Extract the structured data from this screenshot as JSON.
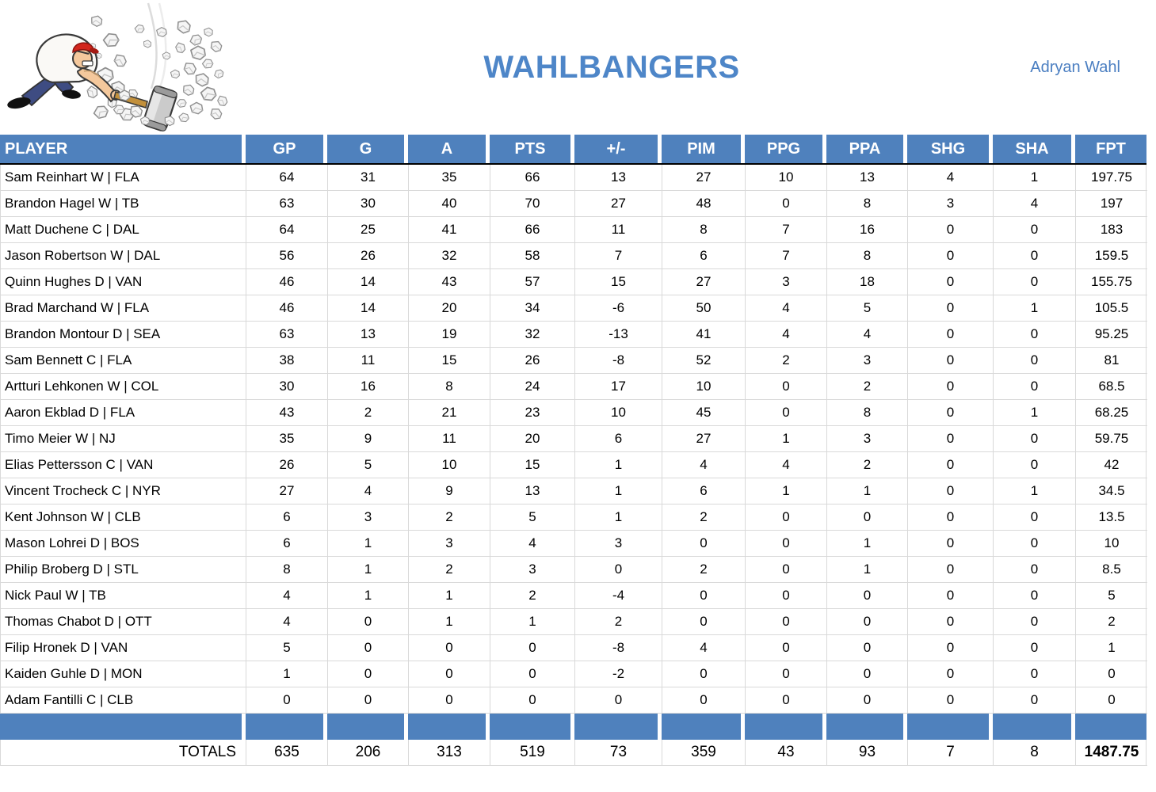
{
  "header": {
    "title": "WAHLBANGERS",
    "owner": "Adryan Wahl",
    "logo_icon": "man-smashing-rocks-with-hammer"
  },
  "colors": {
    "accent": "#4f81bd",
    "title_blue": "#4e86c8",
    "owner_blue": "#4a7ec1",
    "grid_line": "#d9d9d9",
    "text": "#000000",
    "header_text": "#ffffff"
  },
  "table": {
    "columns": [
      "PLAYER",
      "GP",
      "G",
      "A",
      "PTS",
      "+/-",
      "PIM",
      "PPG",
      "PPA",
      "SHG",
      "SHA",
      "FPT"
    ],
    "rows": [
      {
        "player": "Sam Reinhart W | FLA",
        "stats": [
          "64",
          "31",
          "35",
          "66",
          "13",
          "27",
          "10",
          "13",
          "4",
          "1",
          "197.75"
        ]
      },
      {
        "player": "Brandon Hagel W | TB",
        "stats": [
          "63",
          "30",
          "40",
          "70",
          "27",
          "48",
          "0",
          "8",
          "3",
          "4",
          "197"
        ]
      },
      {
        "player": "Matt Duchene C | DAL",
        "stats": [
          "64",
          "25",
          "41",
          "66",
          "11",
          "8",
          "7",
          "16",
          "0",
          "0",
          "183"
        ]
      },
      {
        "player": "Jason Robertson W | DAL",
        "stats": [
          "56",
          "26",
          "32",
          "58",
          "7",
          "6",
          "7",
          "8",
          "0",
          "0",
          "159.5"
        ]
      },
      {
        "player": "Quinn Hughes D | VAN",
        "stats": [
          "46",
          "14",
          "43",
          "57",
          "15",
          "27",
          "3",
          "18",
          "0",
          "0",
          "155.75"
        ]
      },
      {
        "player": "Brad Marchand W | FLA",
        "stats": [
          "46",
          "14",
          "20",
          "34",
          "-6",
          "50",
          "4",
          "5",
          "0",
          "1",
          "105.5"
        ]
      },
      {
        "player": "Brandon Montour D | SEA",
        "stats": [
          "63",
          "13",
          "19",
          "32",
          "-13",
          "41",
          "4",
          "4",
          "0",
          "0",
          "95.25"
        ]
      },
      {
        "player": "Sam Bennett C | FLA",
        "stats": [
          "38",
          "11",
          "15",
          "26",
          "-8",
          "52",
          "2",
          "3",
          "0",
          "0",
          "81"
        ]
      },
      {
        "player": "Artturi Lehkonen W | COL",
        "stats": [
          "30",
          "16",
          "8",
          "24",
          "17",
          "10",
          "0",
          "2",
          "0",
          "0",
          "68.5"
        ]
      },
      {
        "player": "Aaron Ekblad D | FLA",
        "stats": [
          "43",
          "2",
          "21",
          "23",
          "10",
          "45",
          "0",
          "8",
          "0",
          "1",
          "68.25"
        ]
      },
      {
        "player": "Timo Meier W | NJ",
        "stats": [
          "35",
          "9",
          "11",
          "20",
          "6",
          "27",
          "1",
          "3",
          "0",
          "0",
          "59.75"
        ]
      },
      {
        "player": "Elias Pettersson C | VAN",
        "stats": [
          "26",
          "5",
          "10",
          "15",
          "1",
          "4",
          "4",
          "2",
          "0",
          "0",
          "42"
        ]
      },
      {
        "player": "Vincent Trocheck C | NYR",
        "stats": [
          "27",
          "4",
          "9",
          "13",
          "1",
          "6",
          "1",
          "1",
          "0",
          "1",
          "34.5"
        ]
      },
      {
        "player": "Kent Johnson W | CLB",
        "stats": [
          "6",
          "3",
          "2",
          "5",
          "1",
          "2",
          "0",
          "0",
          "0",
          "0",
          "13.5"
        ]
      },
      {
        "player": "Mason Lohrei D | BOS",
        "stats": [
          "6",
          "1",
          "3",
          "4",
          "3",
          "0",
          "0",
          "1",
          "0",
          "0",
          "10"
        ]
      },
      {
        "player": "Philip Broberg D | STL",
        "stats": [
          "8",
          "1",
          "2",
          "3",
          "0",
          "2",
          "0",
          "1",
          "0",
          "0",
          "8.5"
        ]
      },
      {
        "player": "Nick Paul W | TB",
        "stats": [
          "4",
          "1",
          "1",
          "2",
          "-4",
          "0",
          "0",
          "0",
          "0",
          "0",
          "5"
        ]
      },
      {
        "player": "Thomas Chabot D | OTT",
        "stats": [
          "4",
          "0",
          "1",
          "1",
          "2",
          "0",
          "0",
          "0",
          "0",
          "0",
          "2"
        ]
      },
      {
        "player": "Filip Hronek D | VAN",
        "stats": [
          "5",
          "0",
          "0",
          "0",
          "-8",
          "4",
          "0",
          "0",
          "0",
          "0",
          "1"
        ]
      },
      {
        "player": "Kaiden Guhle D | MON",
        "stats": [
          "1",
          "0",
          "0",
          "0",
          "-2",
          "0",
          "0",
          "0",
          "0",
          "0",
          "0"
        ]
      },
      {
        "player": "Adam Fantilli C | CLB",
        "stats": [
          "0",
          "0",
          "0",
          "0",
          "0",
          "0",
          "0",
          "0",
          "0",
          "0",
          "0"
        ]
      }
    ],
    "totals_label": "TOTALS",
    "totals": [
      "635",
      "206",
      "313",
      "519",
      "73",
      "359",
      "43",
      "93",
      "7",
      "8",
      "1487.75"
    ]
  }
}
